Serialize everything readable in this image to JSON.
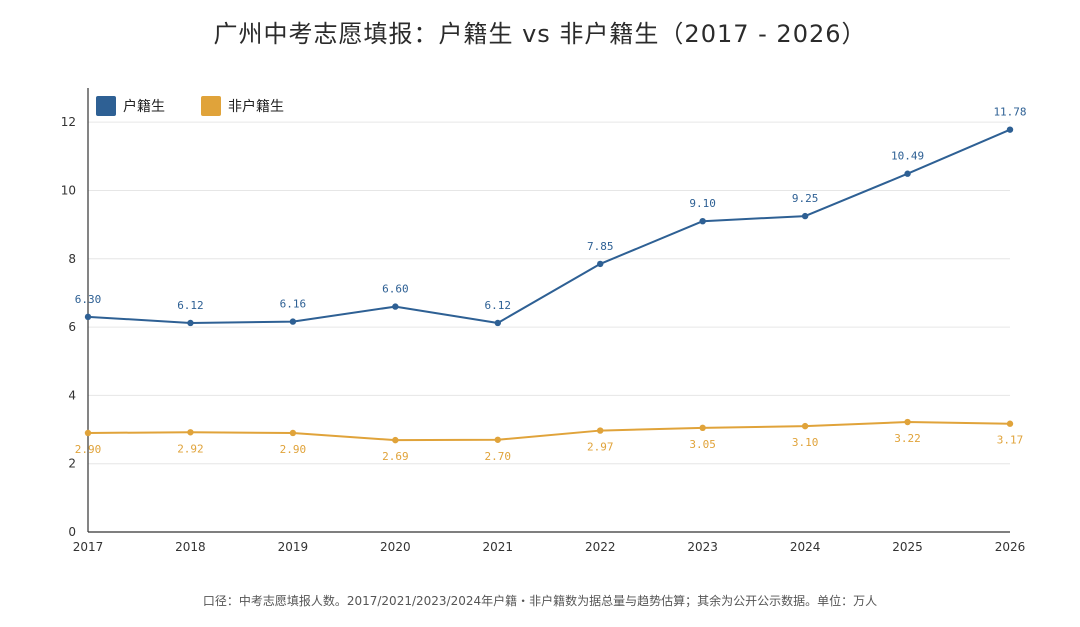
{
  "chart_data": {
    "type": "line",
    "title": "广州中考志愿填报：户籍生 vs 非户籍生（2017 - 2026）",
    "x": [
      "2017",
      "2018",
      "2019",
      "2020",
      "2021",
      "2022",
      "2023",
      "2024",
      "2025",
      "2026"
    ],
    "series": [
      {
        "name": "户籍生",
        "color": "#2e6094",
        "values": [
          6.3,
          6.12,
          6.16,
          6.6,
          6.12,
          7.85,
          9.1,
          9.25,
          10.49,
          11.78
        ],
        "labels": [
          "6.30",
          "6.12",
          "6.16",
          "6.60",
          "6.12",
          "7.85",
          "9.10",
          "9.25",
          "10.49",
          "11.78"
        ]
      },
      {
        "name": "非户籍生",
        "color": "#e0a33a",
        "values": [
          2.9,
          2.92,
          2.9,
          2.69,
          2.7,
          2.97,
          3.05,
          3.1,
          3.22,
          3.17
        ],
        "labels": [
          "2.90",
          "2.92",
          "2.90",
          "2.69",
          "2.70",
          "2.97",
          "3.05",
          "3.10",
          "3.22",
          "3.17"
        ]
      }
    ],
    "ylim": [
      0,
      13
    ],
    "yticks": [
      "0",
      "2",
      "4",
      "6",
      "8",
      "10",
      "12"
    ],
    "xlabel": "",
    "ylabel": "",
    "grid": true,
    "legend": "top-left",
    "footnote": "口径：中考志愿填报人数。2017/2021/2023/2024年户籍・非户籍数为据总量与趋势估算；其余为公开公示数据。单位：万人"
  }
}
